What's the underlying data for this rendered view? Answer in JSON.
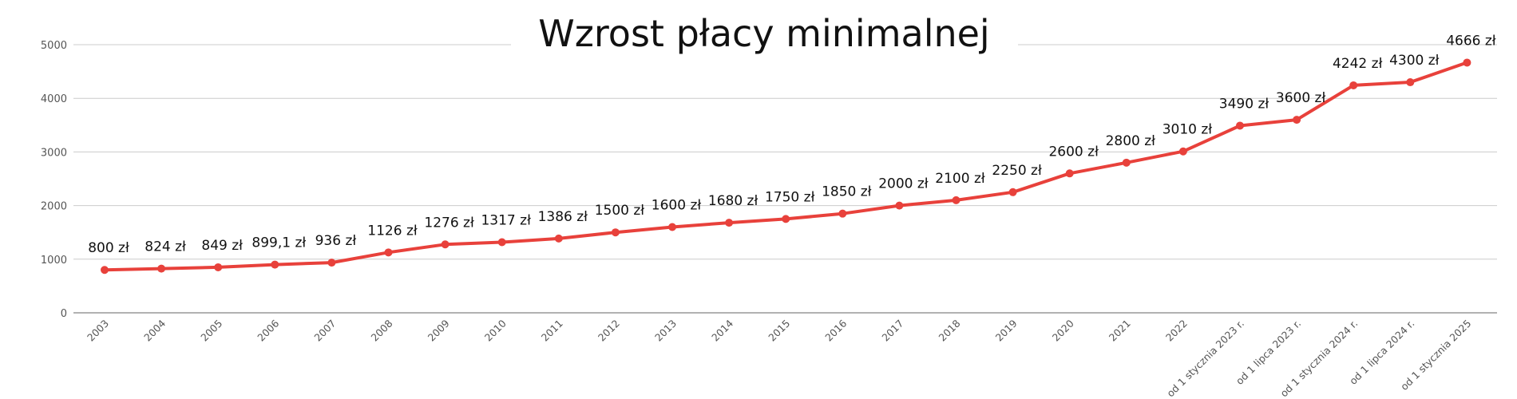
{
  "chart_data": {
    "type": "line",
    "title": "Wzrost płacy minimalnej",
    "xlabel": "",
    "ylabel": "",
    "ylim": [
      0,
      5000
    ],
    "yticks": [
      "0",
      "1000",
      "2000",
      "3000",
      "4000",
      "5000"
    ],
    "grid": true,
    "legend": "none",
    "categories": [
      "2003",
      "2004",
      "2005",
      "2006",
      "2007",
      "2008",
      "2009",
      "2010",
      "2011",
      "2012",
      "2013",
      "2014",
      "2015",
      "2016",
      "2017",
      "2018",
      "2019",
      "2020",
      "2021",
      "2022",
      "od 1 stycznia 2023 r.",
      "od 1 lipca 2023 r.",
      "od 1 stycznia 2024 r.",
      "od 1 lipca 2024 r.",
      "od 1 stycznia 2025"
    ],
    "series": [
      {
        "values": [
          800,
          824,
          849,
          899.1,
          936,
          1126,
          1276,
          1317,
          1386,
          1500,
          1600,
          1680,
          1750,
          1850,
          2000,
          2100,
          2250,
          2600,
          2800,
          3010,
          3490,
          3600,
          4242,
          4300,
          4666
        ],
        "labels": [
          "800 zł",
          "824 zł",
          "849 zł",
          "899,1 zł",
          "936 zł",
          "1126 zł",
          "1276 zł",
          "1317 zł",
          "1386 zł",
          "1500 zł",
          "1600 zł",
          "1680 zł",
          "1750 zł",
          "1850 zł",
          "2000 zł",
          "2100 zł",
          "2250 zł",
          "2600 zł",
          "2800 zł",
          "3010 zł",
          "3490 zł",
          "3600 zł",
          "4242 zł",
          "4300 zł",
          "4666 zł"
        ],
        "color": "#e8413b"
      }
    ],
    "colors": {
      "line": "#e8413b",
      "grid": "#cccccc",
      "axis": "#999999"
    }
  }
}
